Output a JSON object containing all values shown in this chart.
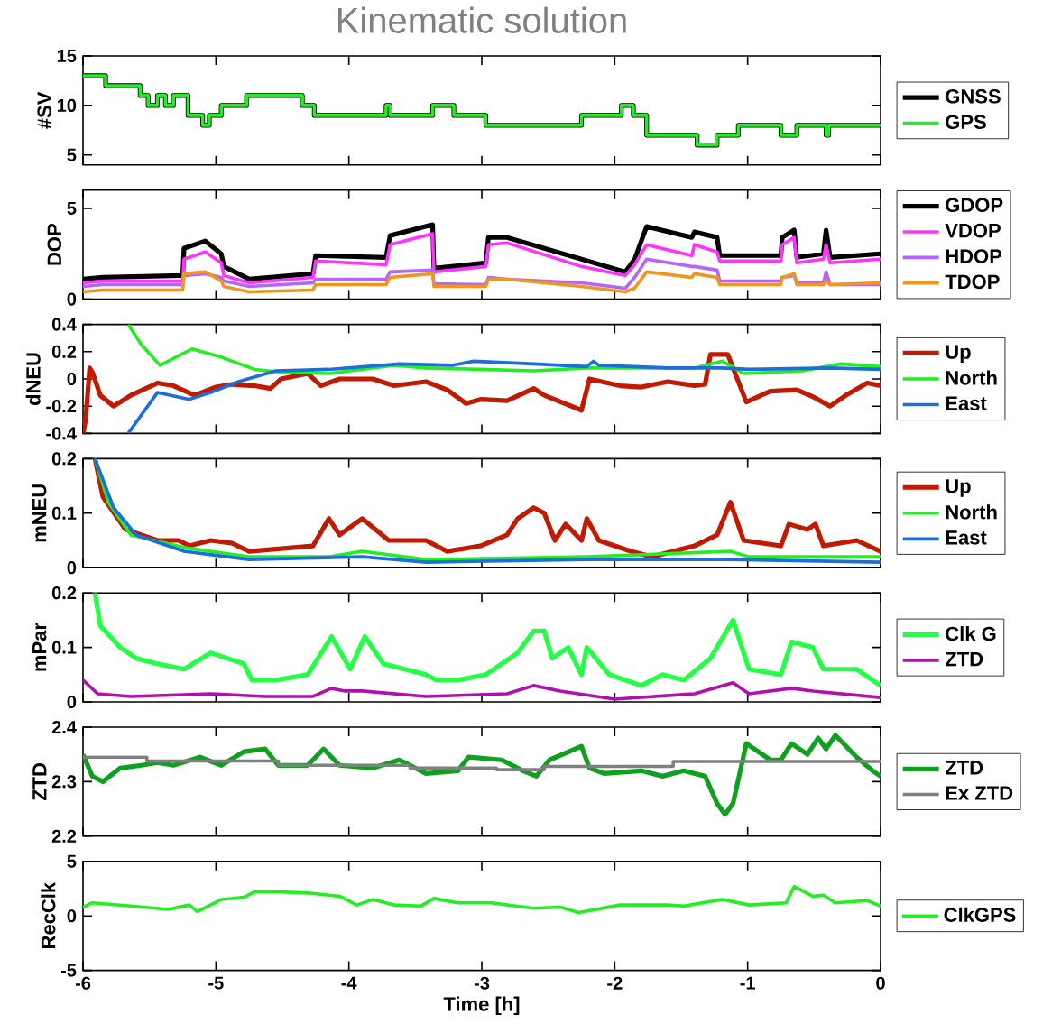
{
  "chart_data": [
    {
      "type": "line",
      "title": "Kinematic solution",
      "ylabel": "#SV",
      "xlim": [
        -6,
        0
      ],
      "xticks": [
        -6,
        -5,
        -4,
        -3,
        -2,
        -1,
        0
      ],
      "ylim": [
        4,
        15
      ],
      "yticks": [
        5,
        10,
        15
      ],
      "tick_labels": "y",
      "legend": "right",
      "series": [
        {
          "name": "GNSS",
          "color": "#000000",
          "type": "step",
          "x": [
            -6,
            -5.83,
            -5.57,
            -5.51,
            -5.44,
            -5.38,
            -5.32,
            -5.25,
            -5.21,
            -5.1,
            -5.05,
            -4.96,
            -4.77,
            -4.35,
            -4.26,
            -3.72,
            -3.69,
            -3.37,
            -3.21,
            -2.97,
            -2.25,
            -1.95,
            -1.86,
            -1.76,
            -1.38,
            -1.23,
            -1.07,
            -0.75,
            -0.63,
            -0.41,
            -0.39,
            0
          ],
          "values": [
            13,
            12,
            11,
            10,
            11,
            10,
            11,
            11,
            9,
            8,
            9,
            10,
            11,
            10,
            9,
            10,
            9,
            10,
            9,
            8,
            9,
            10,
            9,
            7,
            6,
            7,
            8,
            7,
            8,
            7,
            8,
            8
          ]
        },
        {
          "name": "GPS",
          "color": "#22ee22",
          "type": "step",
          "x": [
            -6,
            -5.83,
            -5.57,
            -5.51,
            -5.44,
            -5.38,
            -5.32,
            -5.25,
            -5.21,
            -5.1,
            -5.05,
            -4.96,
            -4.77,
            -4.35,
            -4.26,
            -3.72,
            -3.69,
            -3.37,
            -3.21,
            -2.97,
            -2.25,
            -1.95,
            -1.86,
            -1.76,
            -1.38,
            -1.23,
            -1.07,
            -0.75,
            -0.63,
            -0.41,
            -0.39,
            0
          ],
          "values": [
            13,
            12,
            11,
            10,
            11,
            10,
            11,
            11,
            9,
            8,
            9,
            10,
            11,
            10,
            9,
            10,
            9,
            10,
            9,
            8,
            9,
            10,
            9,
            7,
            6,
            7,
            8,
            7,
            8,
            7,
            8,
            8
          ]
        }
      ]
    },
    {
      "type": "line",
      "ylabel": "DOP",
      "xlim": [
        -6,
        0
      ],
      "xticks": [
        -6,
        -5,
        -4,
        -3,
        -2,
        -1,
        0
      ],
      "ylim": [
        0,
        6
      ],
      "yticks": [
        0,
        5
      ],
      "tick_labels": "y",
      "legend": "right",
      "series": [
        {
          "name": "GDOP",
          "color": "#000000",
          "x": [
            -6,
            -5.85,
            -5.25,
            -5.24,
            -5.08,
            -4.96,
            -4.94,
            -4.75,
            -4.27,
            -4.25,
            -3.72,
            -3.69,
            -3.37,
            -3.36,
            -2.97,
            -2.95,
            -2.81,
            -2.25,
            -1.92,
            -1.85,
            -1.76,
            -1.42,
            -1.4,
            -1.23,
            -1.21,
            -0.75,
            -0.74,
            -0.65,
            -0.63,
            -0.43,
            -0.41,
            -0.38,
            0
          ],
          "values": [
            1.1,
            1.2,
            1.3,
            2.8,
            3.2,
            2.5,
            1.8,
            1.1,
            1.4,
            2.4,
            2.3,
            3.5,
            4.1,
            1.7,
            2.0,
            3.4,
            3.4,
            2.2,
            1.5,
            2.2,
            4.0,
            3.4,
            3.7,
            3.4,
            2.4,
            2.4,
            3.4,
            3.8,
            2.3,
            2.5,
            3.8,
            2.3,
            2.5
          ]
        },
        {
          "name": "VDOP",
          "color": "#ff33ff",
          "x": [
            -6,
            -5.85,
            -5.25,
            -5.24,
            -5.08,
            -4.96,
            -4.94,
            -4.75,
            -4.27,
            -4.25,
            -3.72,
            -3.69,
            -3.37,
            -3.36,
            -2.97,
            -2.95,
            -2.81,
            -2.25,
            -1.92,
            -1.85,
            -1.76,
            -1.42,
            -1.4,
            -1.23,
            -1.21,
            -0.75,
            -0.74,
            -0.65,
            -0.63,
            -0.43,
            -0.41,
            -0.38,
            0
          ],
          "values": [
            0.9,
            1.0,
            1.0,
            2.2,
            2.6,
            2.0,
            1.3,
            0.9,
            1.2,
            2.1,
            1.9,
            3.0,
            3.6,
            1.5,
            1.8,
            3.0,
            3.1,
            1.8,
            1.3,
            1.9,
            3.0,
            2.4,
            3.0,
            2.6,
            2.1,
            2.1,
            3.0,
            3.4,
            2.0,
            2.2,
            3.0,
            2.0,
            2.2
          ]
        },
        {
          "name": "HDOP",
          "color": "#b266ff",
          "x": [
            -6,
            -5.85,
            -5.25,
            -5.24,
            -5.08,
            -4.96,
            -4.94,
            -4.75,
            -4.27,
            -4.25,
            -3.72,
            -3.69,
            -3.37,
            -3.36,
            -2.97,
            -2.95,
            -2.81,
            -2.25,
            -1.92,
            -1.85,
            -1.76,
            -1.42,
            -1.4,
            -1.23,
            -1.21,
            -0.75,
            -0.74,
            -0.65,
            -0.63,
            -0.43,
            -0.41,
            -0.38,
            0
          ],
          "values": [
            0.7,
            0.8,
            0.8,
            1.3,
            1.4,
            1.2,
            1.0,
            0.7,
            0.9,
            1.1,
            1.1,
            1.5,
            1.6,
            0.85,
            0.8,
            1.2,
            1.1,
            0.9,
            0.6,
            1.2,
            2.2,
            1.8,
            1.8,
            1.6,
            1.0,
            1.0,
            1.2,
            1.3,
            0.9,
            0.9,
            1.5,
            0.8,
            0.8
          ]
        },
        {
          "name": "TDOP",
          "color": "#f0961e",
          "x": [
            -6,
            -5.85,
            -5.25,
            -5.24,
            -5.08,
            -4.96,
            -4.94,
            -4.75,
            -4.27,
            -4.25,
            -3.72,
            -3.69,
            -3.37,
            -3.36,
            -2.97,
            -2.95,
            -2.81,
            -2.25,
            -1.92,
            -1.85,
            -1.76,
            -1.42,
            -1.4,
            -1.23,
            -1.21,
            -0.75,
            -0.74,
            -0.65,
            -0.63,
            -0.43,
            -0.41,
            -0.38,
            0
          ],
          "values": [
            0.4,
            0.5,
            0.5,
            1.4,
            1.5,
            1.0,
            0.7,
            0.4,
            0.5,
            0.8,
            0.8,
            1.2,
            1.4,
            0.7,
            0.7,
            1.1,
            1.1,
            0.7,
            0.4,
            0.6,
            1.5,
            1.2,
            1.4,
            1.2,
            0.8,
            0.8,
            1.2,
            1.4,
            0.8,
            0.8,
            1.0,
            0.8,
            0.9
          ]
        }
      ]
    },
    {
      "type": "line",
      "ylabel": "dNEU",
      "xlim": [
        -6,
        0
      ],
      "xticks": [
        -6,
        -5,
        -4,
        -3,
        -2,
        -1,
        0
      ],
      "ylim": [
        -0.4,
        0.4
      ],
      "yticks": [
        -0.4,
        -0.2,
        0,
        0.2,
        0.4
      ],
      "tick_labels": "y",
      "legend": "right",
      "series": [
        {
          "name": "Up",
          "color": "#c01a00",
          "x": [
            -6,
            -5.98,
            -5.95,
            -5.93,
            -5.87,
            -5.77,
            -5.64,
            -5.44,
            -5.32,
            -5.16,
            -5.0,
            -4.88,
            -4.71,
            -4.59,
            -4.51,
            -4.31,
            -4.21,
            -4.07,
            -3.82,
            -3.66,
            -3.42,
            -3.26,
            -3.12,
            -3.01,
            -2.81,
            -2.61,
            -2.53,
            -2.25,
            -2.19,
            -1.96,
            -1.8,
            -1.6,
            -1.4,
            -1.32,
            -1.28,
            -1.15,
            -1.01,
            -0.83,
            -0.63,
            -0.51,
            -0.38,
            -0.26,
            -0.1,
            0
          ],
          "values": [
            -0.4,
            -0.3,
            0.08,
            0.05,
            -0.12,
            -0.2,
            -0.12,
            -0.03,
            -0.05,
            -0.12,
            -0.06,
            -0.04,
            -0.05,
            -0.07,
            0,
            0.04,
            -0.05,
            0,
            0,
            -0.05,
            -0.02,
            -0.08,
            -0.18,
            -0.15,
            -0.16,
            -0.07,
            -0.12,
            -0.23,
            0.0,
            -0.05,
            -0.06,
            -0.02,
            -0.05,
            -0.04,
            0.18,
            0.18,
            -0.17,
            -0.09,
            -0.08,
            -0.13,
            -0.2,
            -0.12,
            -0.03,
            -0.05
          ]
        },
        {
          "name": "North",
          "color": "#22ee22",
          "x": [
            -5.66,
            -5.56,
            -5.42,
            -5.18,
            -4.96,
            -4.71,
            -4.51,
            -4.15,
            -3.66,
            -3.42,
            -3.01,
            -2.61,
            -2.21,
            -1.8,
            -1.4,
            -1.19,
            -1.03,
            -0.59,
            -0.3,
            0
          ],
          "values": [
            0.4,
            0.25,
            0.1,
            0.22,
            0.16,
            0.07,
            0.05,
            0.04,
            0.1,
            0.08,
            0.07,
            0.06,
            0.08,
            0.08,
            0.08,
            0.13,
            0.04,
            0.06,
            0.11,
            0.09
          ]
        },
        {
          "name": "East",
          "color": "#1a6fdc",
          "x": [
            -5.66,
            -5.44,
            -5.2,
            -5.04,
            -4.83,
            -4.55,
            -4.15,
            -3.62,
            -3.22,
            -3.06,
            -2.61,
            -2.21,
            -2.16,
            -2.12,
            -1.6,
            -1.19,
            -0.99,
            -0.38,
            0
          ],
          "values": [
            -0.4,
            -0.1,
            -0.15,
            -0.1,
            -0.02,
            0.06,
            0.07,
            0.11,
            0.1,
            0.13,
            0.11,
            0.09,
            0.13,
            0.1,
            0.08,
            0.08,
            0.07,
            0.08,
            0.07
          ]
        }
      ]
    },
    {
      "type": "line",
      "ylabel": "mNEU",
      "xlim": [
        -6,
        0
      ],
      "xticks": [
        -6,
        -5,
        -4,
        -3,
        -2,
        -1,
        0
      ],
      "ylim": [
        0,
        0.2
      ],
      "yticks": [
        0,
        0.1,
        0.2
      ],
      "tick_labels": "y",
      "legend": "right",
      "series": [
        {
          "name": "Up",
          "color": "#c01a00",
          "x": [
            -5.91,
            -5.85,
            -5.68,
            -5.44,
            -5.28,
            -5.2,
            -5.04,
            -4.88,
            -4.75,
            -4.27,
            -4.15,
            -4.07,
            -3.9,
            -3.7,
            -3.42,
            -3.26,
            -3.01,
            -2.81,
            -2.73,
            -2.61,
            -2.53,
            -2.45,
            -2.37,
            -2.25,
            -2.21,
            -2.12,
            -1.88,
            -1.72,
            -1.4,
            -1.23,
            -1.13,
            -1.03,
            -0.75,
            -0.69,
            -0.55,
            -0.49,
            -0.43,
            -0.18,
            0
          ],
          "values": [
            0.2,
            0.13,
            0.07,
            0.05,
            0.05,
            0.04,
            0.05,
            0.045,
            0.03,
            0.04,
            0.09,
            0.06,
            0.09,
            0.05,
            0.05,
            0.03,
            0.04,
            0.06,
            0.09,
            0.11,
            0.1,
            0.05,
            0.08,
            0.05,
            0.09,
            0.05,
            0.03,
            0.02,
            0.04,
            0.06,
            0.12,
            0.05,
            0.04,
            0.08,
            0.07,
            0.08,
            0.04,
            0.05,
            0.03
          ]
        },
        {
          "name": "North",
          "color": "#22ee22",
          "x": [
            -5.91,
            -5.81,
            -5.64,
            -5.24,
            -4.75,
            -4.15,
            -3.9,
            -3.42,
            -2.21,
            -1.13,
            -0.99,
            0
          ],
          "values": [
            0.2,
            0.12,
            0.06,
            0.037,
            0.02,
            0.02,
            0.03,
            0.015,
            0.02,
            0.03,
            0.02,
            0.02
          ]
        },
        {
          "name": "East",
          "color": "#1a6fdc",
          "x": [
            -5.91,
            -5.77,
            -5.6,
            -5.24,
            -4.75,
            -3.9,
            -3.42,
            -2.21,
            -1.13,
            0
          ],
          "values": [
            0.2,
            0.11,
            0.06,
            0.03,
            0.015,
            0.02,
            0.01,
            0.015,
            0.015,
            0.01
          ]
        }
      ]
    },
    {
      "type": "line",
      "ylabel": "mPar",
      "xlim": [
        -6,
        0
      ],
      "xticks": [
        -6,
        -5,
        -4,
        -3,
        -2,
        -1,
        0
      ],
      "ylim": [
        0,
        0.2
      ],
      "yticks": [
        0,
        0.1,
        0.2
      ],
      "tick_labels": "y",
      "legend": "right",
      "series": [
        {
          "name": "Clk G",
          "color": "#22ff44",
          "x": [
            -5.91,
            -5.87,
            -5.72,
            -5.6,
            -5.44,
            -5.24,
            -5.04,
            -4.79,
            -4.73,
            -4.55,
            -4.31,
            -4.13,
            -3.99,
            -3.88,
            -3.74,
            -3.42,
            -3.34,
            -3.18,
            -2.97,
            -2.73,
            -2.61,
            -2.53,
            -2.47,
            -2.35,
            -2.25,
            -2.21,
            -2.04,
            -1.8,
            -1.64,
            -1.48,
            -1.28,
            -1.11,
            -0.99,
            -0.75,
            -0.67,
            -0.51,
            -0.43,
            -0.18,
            0
          ],
          "values": [
            0.2,
            0.14,
            0.1,
            0.08,
            0.07,
            0.06,
            0.09,
            0.07,
            0.04,
            0.04,
            0.05,
            0.12,
            0.06,
            0.12,
            0.07,
            0.05,
            0.04,
            0.04,
            0.05,
            0.09,
            0.13,
            0.13,
            0.08,
            0.1,
            0.05,
            0.1,
            0.05,
            0.03,
            0.05,
            0.04,
            0.08,
            0.15,
            0.06,
            0.05,
            0.11,
            0.1,
            0.06,
            0.06,
            0.03
          ]
        },
        {
          "name": "ZTD",
          "color": "#b010b0",
          "x": [
            -6,
            -5.89,
            -5.64,
            -5.04,
            -4.63,
            -4.27,
            -4.13,
            -4.03,
            -3.9,
            -3.42,
            -2.81,
            -2.61,
            -2.41,
            -2.0,
            -1.4,
            -1.11,
            -0.99,
            -0.67,
            -0.51,
            0
          ],
          "values": [
            0.04,
            0.015,
            0.01,
            0.015,
            0.01,
            0.01,
            0.025,
            0.02,
            0.02,
            0.01,
            0.015,
            0.03,
            0.02,
            0.005,
            0.015,
            0.035,
            0.015,
            0.025,
            0.02,
            0.008
          ]
        }
      ]
    },
    {
      "type": "line",
      "ylabel": "ZTD",
      "xlim": [
        -6,
        0
      ],
      "xticks": [
        -6,
        -5,
        -4,
        -3,
        -2,
        -1,
        0
      ],
      "ylim": [
        2.2,
        2.4
      ],
      "yticks": [
        2.2,
        2.3,
        2.4
      ],
      "tick_labels": "y",
      "legend": "right",
      "series": [
        {
          "name": "ZTD",
          "color": "#10a020",
          "x": [
            -6,
            -5.93,
            -5.85,
            -5.72,
            -5.56,
            -5.44,
            -5.32,
            -5.12,
            -4.96,
            -4.79,
            -4.63,
            -4.53,
            -4.31,
            -4.19,
            -4.07,
            -3.82,
            -3.62,
            -3.42,
            -3.18,
            -3.1,
            -2.85,
            -2.69,
            -2.59,
            -2.49,
            -2.25,
            -2.19,
            -2.08,
            -1.8,
            -1.64,
            -1.48,
            -1.32,
            -1.23,
            -1.17,
            -1.11,
            -1.01,
            -0.83,
            -0.75,
            -0.67,
            -0.55,
            -0.47,
            -0.41,
            -0.34,
            -0.18,
            -0.06,
            0
          ],
          "values": [
            2.35,
            2.31,
            2.3,
            2.325,
            2.33,
            2.335,
            2.33,
            2.345,
            2.33,
            2.355,
            2.36,
            2.33,
            2.33,
            2.36,
            2.33,
            2.325,
            2.34,
            2.315,
            2.32,
            2.345,
            2.34,
            2.32,
            2.31,
            2.34,
            2.365,
            2.325,
            2.315,
            2.32,
            2.31,
            2.32,
            2.31,
            2.26,
            2.24,
            2.26,
            2.37,
            2.34,
            2.34,
            2.37,
            2.35,
            2.38,
            2.36,
            2.385,
            2.345,
            2.32,
            2.31
          ]
        },
        {
          "name": "Ex ZTD",
          "color": "#808080",
          "x": [
            -6,
            -5.52,
            -5.52,
            -4.53,
            -4.53,
            -3.54,
            -3.54,
            -2.89,
            -2.89,
            -2.53,
            -2.53,
            -1.56,
            -1.56,
            0
          ],
          "values": [
            2.345,
            2.345,
            2.338,
            2.338,
            2.33,
            2.33,
            2.325,
            2.325,
            2.322,
            2.322,
            2.328,
            2.328,
            2.337,
            2.337
          ]
        }
      ]
    },
    {
      "type": "line",
      "ylabel": "RecClk",
      "xlabel": "Time [h]",
      "xlim": [
        -6,
        0
      ],
      "xticks": [
        -6,
        -5,
        -4,
        -3,
        -2,
        -1,
        0
      ],
      "ylim": [
        -5,
        5
      ],
      "yticks": [
        -5,
        0,
        5
      ],
      "legend": "right",
      "series": [
        {
          "name": "ClkGPS",
          "color": "#22ee22",
          "x": [
            -6,
            -5.93,
            -5.64,
            -5.36,
            -5.2,
            -5.14,
            -4.96,
            -4.79,
            -4.71,
            -4.51,
            -4.31,
            -4.07,
            -3.94,
            -3.82,
            -3.66,
            -3.46,
            -3.36,
            -3.18,
            -2.93,
            -2.61,
            -2.41,
            -2.27,
            -1.96,
            -1.6,
            -1.48,
            -1.19,
            -0.99,
            -0.71,
            -0.65,
            -0.51,
            -0.43,
            -0.34,
            -0.1,
            0
          ],
          "values": [
            0.8,
            1.2,
            0.9,
            0.6,
            1.0,
            0.4,
            1.5,
            1.7,
            2.2,
            2.2,
            2.1,
            1.8,
            1.0,
            1.5,
            1.0,
            0.9,
            1.6,
            1.2,
            1.2,
            0.7,
            0.8,
            0.3,
            1.0,
            1.0,
            0.9,
            1.5,
            1.0,
            1.2,
            2.7,
            1.8,
            1.9,
            1.2,
            1.4,
            0.9
          ]
        }
      ]
    }
  ]
}
